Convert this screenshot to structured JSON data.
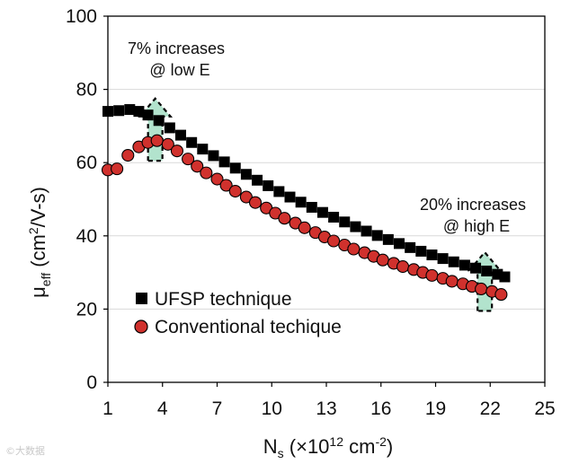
{
  "chart_data": {
    "type": "scatter",
    "title": "",
    "xlabel": {
      "main": "N",
      "sub": "s",
      "open": " (×10",
      "sup": "12",
      "unit": " cm",
      "unit_sup": "-2",
      "close": ")"
    },
    "ylabel": {
      "main": "μ",
      "sub": "eff",
      "open": "  (cm",
      "sup": "2",
      "close": "/V-s)"
    },
    "xlim": [
      1,
      25
    ],
    "ylim": [
      0,
      100
    ],
    "xticks": [
      1,
      4,
      7,
      10,
      13,
      16,
      19,
      22,
      25
    ],
    "yticks": [
      0,
      20,
      40,
      60,
      80,
      100
    ],
    "grid": "horizontal",
    "legend_position": "bottom-left",
    "series": [
      {
        "name": "UFSP technique",
        "marker": "square",
        "color": "#000000",
        "x": [
          1.0,
          1.6,
          2.2,
          2.7,
          3.2,
          3.8,
          4.4,
          5.0,
          5.6,
          6.2,
          6.8,
          7.4,
          8.0,
          8.6,
          9.2,
          9.8,
          10.4,
          11.0,
          11.6,
          12.2,
          12.8,
          13.4,
          14.0,
          14.6,
          15.2,
          15.8,
          16.4,
          17.0,
          17.6,
          18.2,
          18.8,
          19.4,
          20.0,
          20.6,
          21.2,
          21.8,
          22.4,
          22.8
        ],
        "y": [
          74.0,
          74.2,
          74.5,
          74.0,
          73.0,
          71.5,
          69.5,
          67.5,
          65.5,
          63.7,
          61.9,
          60.2,
          58.5,
          56.8,
          55.2,
          53.7,
          52.1,
          50.6,
          49.2,
          47.8,
          46.4,
          45.1,
          43.8,
          42.5,
          41.3,
          40.1,
          39.0,
          37.9,
          36.8,
          35.8,
          34.8,
          33.8,
          32.9,
          32.0,
          31.2,
          30.4,
          29.5,
          28.8
        ]
      },
      {
        "name": "Conventional techique",
        "marker": "circle",
        "color": "#d0312d",
        "x": [
          1.0,
          1.5,
          2.1,
          2.7,
          3.2,
          3.7,
          4.3,
          4.8,
          5.4,
          5.9,
          6.4,
          7.0,
          7.5,
          8.0,
          8.6,
          9.1,
          9.7,
          10.2,
          10.7,
          11.3,
          11.8,
          12.4,
          12.9,
          13.4,
          14.0,
          14.5,
          15.1,
          15.6,
          16.1,
          16.7,
          17.2,
          17.8,
          18.3,
          18.8,
          19.4,
          19.9,
          20.5,
          21.0,
          21.5,
          22.1,
          22.6
        ],
        "y": [
          58.0,
          58.3,
          62.0,
          64.3,
          65.5,
          66.0,
          65.0,
          63.2,
          61.0,
          59.0,
          57.2,
          55.5,
          53.8,
          52.2,
          50.6,
          49.1,
          47.6,
          46.2,
          44.8,
          43.5,
          42.2,
          40.9,
          39.7,
          38.6,
          37.5,
          36.4,
          35.4,
          34.4,
          33.4,
          32.5,
          31.6,
          30.8,
          30.0,
          29.2,
          28.4,
          27.6,
          26.9,
          26.2,
          25.5,
          24.8,
          24.0
        ]
      }
    ],
    "annotations": [
      {
        "line1": "7% increases",
        "line2": "@ low E",
        "arrow_x": 3.6,
        "arrow_from": 60.5,
        "arrow_to": 77.5
      },
      {
        "line1": "20% increases",
        "line2": "@ high E",
        "arrow_x": 21.7,
        "arrow_from": 19.5,
        "arrow_to": 35.5
      }
    ]
  },
  "watermark": "©大数据"
}
